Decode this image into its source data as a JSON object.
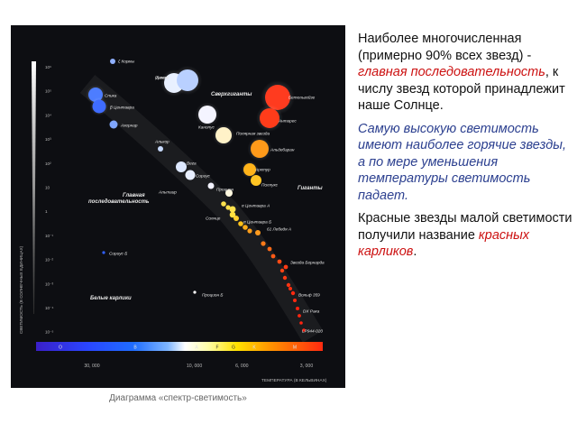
{
  "text": {
    "p1_start": "Наиболее многочисленная (примерно 90% всех звезд) -",
    "p1_highlight": "главная последовательность",
    "p1_end": ", к числу звезд которой принадлежит наше Солнце.",
    "p2": "Самую высокую светимость имеют наиболее горячие звезды, а по мере уменьшения температуры светимость падает.",
    "p3_start": "Красные звезды малой светимости получили название",
    "p3_highlight": "красных карликов",
    "p3_end": "."
  },
  "caption": "Диаграмма «спектр-светимость»",
  "colors": {
    "highlight_red": "#cc1111",
    "highlight_blue": "#2b3f8f",
    "diagram_bg": "#0d0e12"
  },
  "chart_data": {
    "type": "scatter",
    "xlabel": "ТЕМПЕРАТУРА (В КЕЛЬВИНАХ)",
    "ylabel": "СВЕТИМОСТЬ (В СОЛНЕЧНЫХ ЕДИНИЦАХ)",
    "x_ticks": [
      "30, 000",
      "10, 000",
      "6, 000",
      "3, 000"
    ],
    "y_ticks": [
      "10⁶",
      "10⁵",
      "10⁴",
      "10³",
      "10²",
      "10",
      "1",
      "10⁻¹",
      "10⁻²",
      "10⁻³",
      "10⁻⁴",
      "10⁻⁵"
    ],
    "spectral_classes": [
      "O",
      "B",
      "A",
      "F",
      "G",
      "K",
      "M"
    ],
    "regions": [
      "Сверхгиганты",
      "Гиганты",
      "Главная последовательность",
      "Белые карлики"
    ],
    "stars": [
      {
        "name": "ζ Кормы",
        "temp_K": 35000,
        "lum": 1000000,
        "color": "#8fb0ff"
      },
      {
        "name": "Денеб",
        "temp_K": 9000,
        "lum": 300000,
        "color": "#e8f0ff"
      },
      {
        "name": "Спика",
        "temp_K": 25000,
        "lum": 20000,
        "color": "#4d7dff"
      },
      {
        "name": "Ригель",
        "temp_K": 12000,
        "lum": 60000,
        "color": "#b9d0ff"
      },
      {
        "name": "Бетельгейзе",
        "temp_K": 3500,
        "lum": 60000,
        "color": "#ff3b1f"
      },
      {
        "name": "Антарес",
        "temp_K": 3600,
        "lum": 30000,
        "color": "#ff3c1a"
      },
      {
        "name": "β Центавра",
        "temp_K": 25000,
        "lum": 15000,
        "color": "#3f6cff"
      },
      {
        "name": "Ахернар",
        "temp_K": 15000,
        "lum": 3000,
        "color": "#7fa6ff"
      },
      {
        "name": "Канопус",
        "temp_K": 7500,
        "lum": 15000,
        "color": "#f4f4ff"
      },
      {
        "name": "Полярная звезда",
        "temp_K": 6000,
        "lum": 2500,
        "color": "#fff2c8"
      },
      {
        "name": "Альдебаран",
        "temp_K": 4000,
        "lum": 400,
        "color": "#ff9a1a"
      },
      {
        "name": "Алькор",
        "temp_K": 9000,
        "lum": 150,
        "color": "#c9dbff"
      },
      {
        "name": "Вега",
        "temp_K": 9600,
        "lum": 50,
        "color": "#dde8ff"
      },
      {
        "name": "Сириус",
        "temp_K": 9900,
        "lum": 25,
        "color": "#e7eeff"
      },
      {
        "name": "Арктур",
        "temp_K": 4300,
        "lum": 170,
        "color": "#ffb31a"
      },
      {
        "name": "Поллукс",
        "temp_K": 4700,
        "lum": 40,
        "color": "#ffc423"
      },
      {
        "name": "Альтаир",
        "temp_K": 7700,
        "lum": 10,
        "color": "#f2f2ff"
      },
      {
        "name": "Процион",
        "temp_K": 6500,
        "lum": 7,
        "color": "#fff8e0"
      },
      {
        "name": "α Центавра А",
        "temp_K": 5800,
        "lum": 1.5,
        "color": "#ffe24d"
      },
      {
        "name": "Солнце",
        "temp_K": 5800,
        "lum": 1,
        "color": "#ffe040"
      },
      {
        "name": "α Центавра Б",
        "temp_K": 5200,
        "lum": 0.5,
        "color": "#ffcf2e"
      },
      {
        "name": "61 Лебедя А",
        "temp_K": 4500,
        "lum": 0.15,
        "color": "#ff9b1e"
      },
      {
        "name": "Звезда Бернарда",
        "temp_K": 3200,
        "lum": 0.004,
        "color": "#ff3a14"
      },
      {
        "name": "Вольф 359",
        "temp_K": 2800,
        "lum": 0.001,
        "color": "#ff2a10"
      },
      {
        "name": "DX Рака",
        "temp_K": 2800,
        "lum": 0.0004,
        "color": "#ff2210"
      },
      {
        "name": "LP944-020",
        "temp_K": 2400,
        "lum": 5e-05,
        "color": "#ff2010"
      },
      {
        "name": "Сириус Б",
        "temp_K": 25000,
        "lum": 0.03,
        "color": "#3060ff"
      },
      {
        "name": "Процион Б",
        "temp_K": 7700,
        "lum": 0.0005,
        "color": "#ffffff"
      }
    ]
  }
}
